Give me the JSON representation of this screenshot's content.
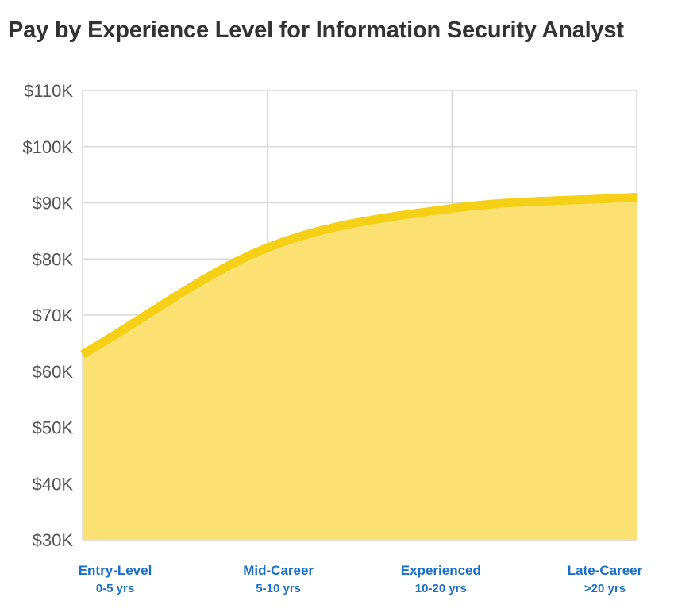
{
  "chart_data": {
    "type": "area",
    "title": "Pay by Experience Level for Information Security Analyst",
    "categories": [
      {
        "label": "Entry-Level",
        "sublabel": "0-5 yrs"
      },
      {
        "label": "Mid-Career",
        "sublabel": "5-10 yrs"
      },
      {
        "label": "Experienced",
        "sublabel": "10-20 yrs"
      },
      {
        "label": "Late-Career",
        "sublabel": ">20 yrs"
      }
    ],
    "values": [
      63000,
      82000,
      89000,
      91000
    ],
    "ylim": [
      30000,
      110000
    ],
    "yticks": [
      {
        "value": 110000,
        "label": "$110K"
      },
      {
        "value": 100000,
        "label": "$100K"
      },
      {
        "value": 90000,
        "label": "$90K"
      },
      {
        "value": 80000,
        "label": "$80K"
      },
      {
        "value": 70000,
        "label": "$70K"
      },
      {
        "value": 60000,
        "label": "$60K"
      },
      {
        "value": 50000,
        "label": "$50K"
      },
      {
        "value": 40000,
        "label": "$40K"
      },
      {
        "value": 30000,
        "label": "$30K"
      }
    ],
    "grid": true,
    "legend": "none",
    "colors": {
      "line": "#f5d016",
      "fill": "#fae172",
      "grid": "#d9d9d9",
      "category_label": "#1a6fc9",
      "tick_label": "#555555",
      "title": "#333333"
    }
  }
}
